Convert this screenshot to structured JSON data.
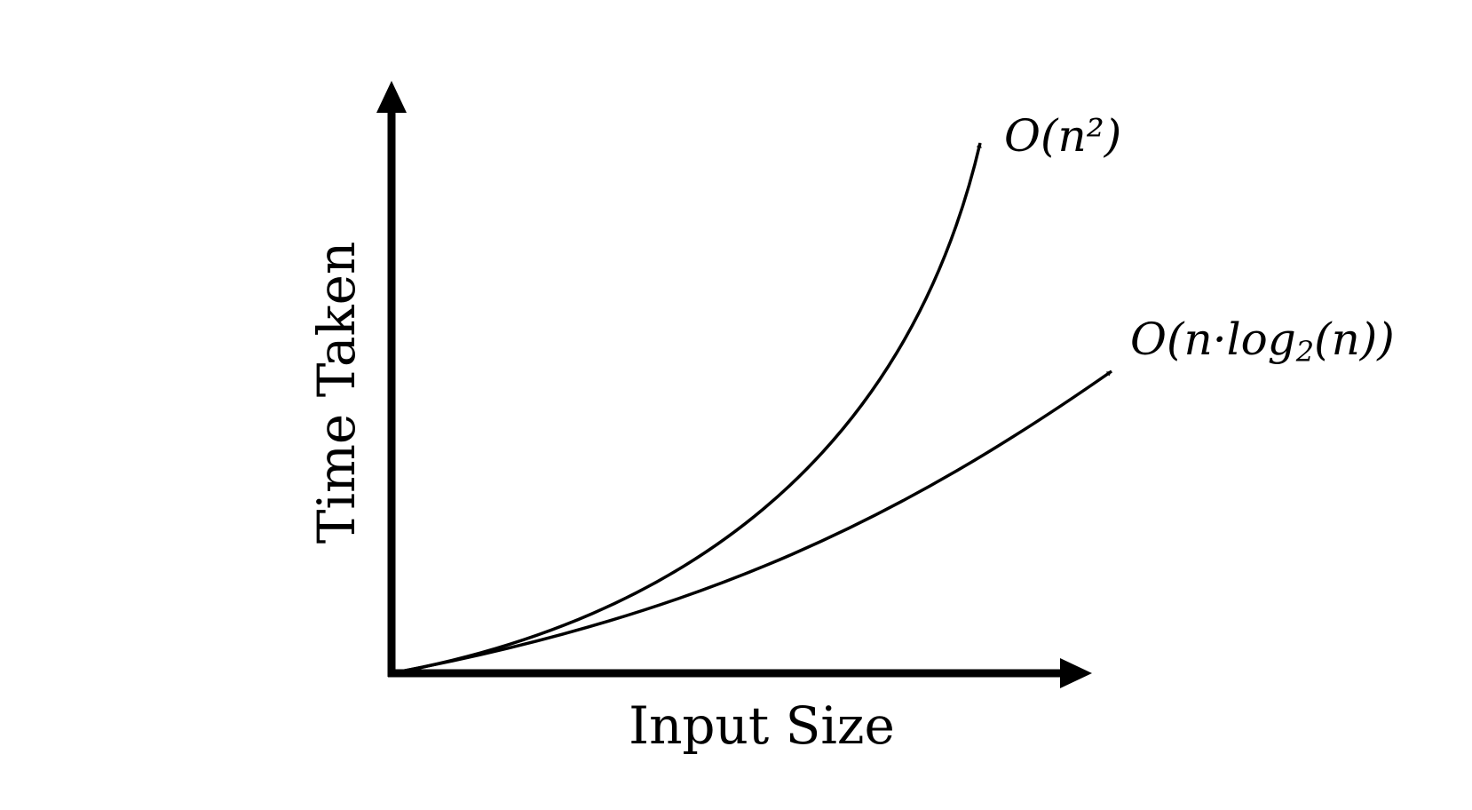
{
  "chart_data": {
    "type": "line",
    "title": "",
    "xlabel": "Input Size",
    "ylabel": "Time Taken",
    "axis_ticks": false,
    "grid": false,
    "legend": "labels at curve ends",
    "colors": {
      "axes": "#000000",
      "curves": "#000000",
      "background": "#ffffff"
    },
    "series": [
      {
        "name": "O(n²)",
        "label_parts": {
          "main": "O(n²)"
        },
        "function": "n^2"
      },
      {
        "name": "O(n·log₂(n))",
        "label_parts": {
          "pre": "O(n·log",
          "sub": "2",
          "post": "(n))"
        },
        "function": "n*log2(n)"
      }
    ]
  }
}
